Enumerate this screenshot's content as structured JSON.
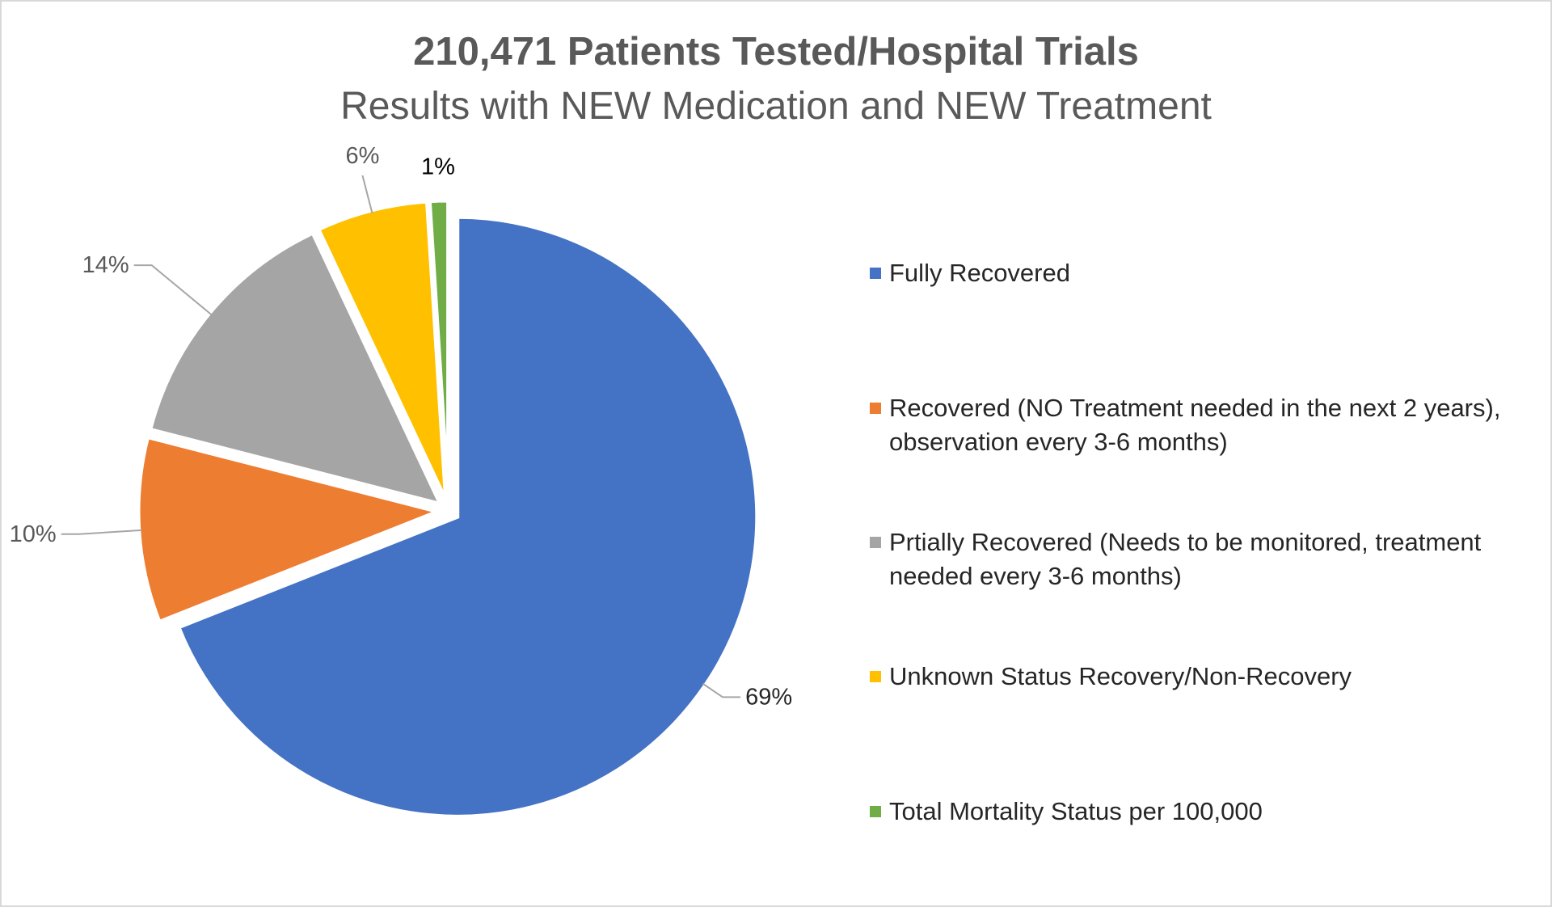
{
  "chart_data": {
    "type": "pie",
    "title": "210,471 Patients Tested/Hospital Trials",
    "subtitle": "Results with NEW Medication and NEW Treatment",
    "categories": [
      "Fully Recovered",
      "Recovered (NO Treatment needed in the next 2 years), observation every 3-6 months)",
      "Prtially Recovered (Needs to be monitored, treatment needed every 3-6 months)",
      "Unknown Status Recovery/Non-Recovery",
      "Total Mortality Status per 100,000"
    ],
    "values": [
      69,
      10,
      14,
      6,
      1
    ],
    "data_labels": [
      "69%",
      "10%",
      "14%",
      "6%",
      "1%"
    ],
    "colors": [
      "#4472c4",
      "#ed7d31",
      "#a5a5a5",
      "#ffc000",
      "#70ad47"
    ],
    "legend_position": "right",
    "exploded": true
  },
  "legend": {
    "items": [
      {
        "label_lines": [
          "Fully Recovered"
        ]
      },
      {
        "label_lines": [
          "Recovered (NO Treatment needed in the next 2 years),",
          "observation every 3-6 months)"
        ]
      },
      {
        "label_lines": [
          "Prtially Recovered (Needs to be monitored, treatment",
          "needed every 3-6 months)"
        ]
      },
      {
        "label_lines": [
          "Unknown Status Recovery/Non-Recovery"
        ]
      },
      {
        "label_lines": [
          "Total Mortality Status per 100,000"
        ]
      }
    ]
  }
}
